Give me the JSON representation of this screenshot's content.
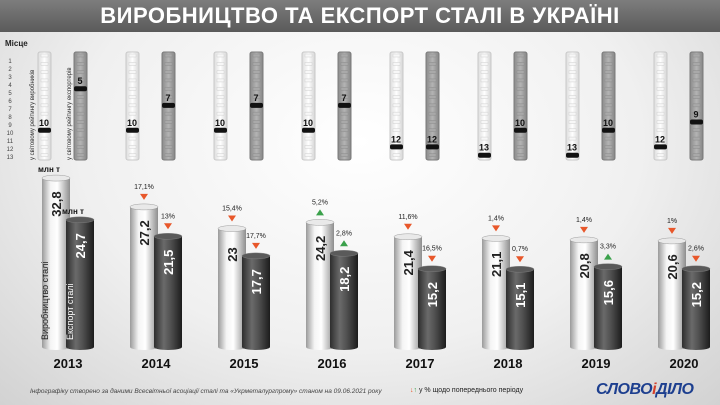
{
  "title": "ВИРОБНИЦТВО ТА ЕКСПОРТ СТАЛІ В УКРАЇНІ",
  "rank_header": "Місце",
  "rank_numbers": [
    "1",
    "2",
    "3",
    "4",
    "5",
    "6",
    "7",
    "8",
    "9",
    "10",
    "11",
    "12",
    "13"
  ],
  "rank_label_production": "у світовому рейтингу виробників",
  "rank_label_export": "у світовому рейтингу експортерів",
  "unit_label": "млн т",
  "series_label_production": "Виробництво сталі",
  "series_label_export": "Експорт сталі",
  "footer_note": "Інфографіку створено за даними Всесвітньої асоціації сталі та «Укрметалургпрому» станом на 09.06.2021 року",
  "legend_text": "у % щодо попереднього періоду",
  "logo_main": "СЛОВО",
  "logo_sep": "і",
  "logo_end": "ДІЛО",
  "colors": {
    "down": "#e8572a",
    "up": "#3aa14b",
    "header": "#6a6a6a",
    "logo": "#1d3f8f"
  },
  "chart_data": {
    "type": "bar",
    "categories": [
      "2013",
      "2014",
      "2015",
      "2016",
      "2017",
      "2018",
      "2019",
      "2020"
    ],
    "series": [
      {
        "name": "Виробництво сталі",
        "values": [
          32.8,
          27.2,
          23,
          24.2,
          21.4,
          21.1,
          20.8,
          20.6
        ],
        "value_labels": [
          "32,8",
          "27,2",
          "23",
          "24,2",
          "21,4",
          "21,1",
          "20,8",
          "20,6"
        ]
      },
      {
        "name": "Експорт сталі",
        "values": [
          24.7,
          21.5,
          17.7,
          18.2,
          15.2,
          15.1,
          15.6,
          15.2
        ],
        "value_labels": [
          "24,7",
          "21,5",
          "17,7",
          "18,2",
          "15,2",
          "15,1",
          "15,6",
          "15,2"
        ]
      }
    ],
    "changes": {
      "production": [
        null,
        {
          "text": "17,1%",
          "dir": "down"
        },
        {
          "text": "15,4%",
          "dir": "down"
        },
        {
          "text": "5,2%",
          "dir": "up"
        },
        {
          "text": "11,6%",
          "dir": "down"
        },
        {
          "text": "1,4%",
          "dir": "down"
        },
        {
          "text": "1,4%",
          "dir": "down"
        },
        {
          "text": "1%",
          "dir": "down"
        }
      ],
      "export": [
        null,
        {
          "text": "13%",
          "dir": "down"
        },
        {
          "text": "17,7%",
          "dir": "down"
        },
        {
          "text": "2,8%",
          "dir": "up"
        },
        {
          "text": "16,5%",
          "dir": "down"
        },
        {
          "text": "0,7%",
          "dir": "down"
        },
        {
          "text": "3,3%",
          "dir": "up"
        },
        {
          "text": "2,6%",
          "dir": "down"
        }
      ]
    },
    "rankings": {
      "production": [
        10,
        10,
        10,
        10,
        12,
        13,
        13,
        12
      ],
      "export": [
        5,
        7,
        7,
        7,
        12,
        10,
        10,
        9
      ]
    }
  }
}
